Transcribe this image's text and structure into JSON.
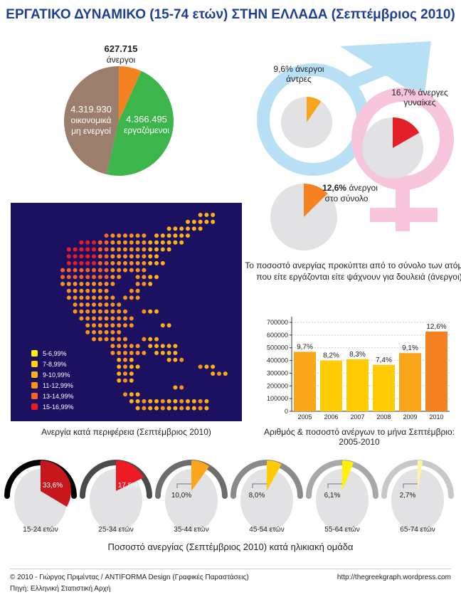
{
  "title": "ΕΡΓΑΤΙΚΟ ΔΥΝΑΜΙΚΟ (15-74 ετών) ΣΤΗΝ ΕΛΛΑΔΑ (Σεπτέμβριος 2010)",
  "colors": {
    "orange": "#f58220",
    "green": "#3cb54a",
    "brown": "#9b7e6b",
    "gray": "#e2e2e4",
    "red": "#e3202a",
    "blue_ring": "#b8e0f5",
    "pink_ring": "#f7c6dc",
    "map_bg": "#1c1060",
    "title": "#1f3f94"
  },
  "workforce_pie": {
    "slices": [
      {
        "value": 627715,
        "label_value": "627.715",
        "label": "άνεργοι",
        "color": "#f58220"
      },
      {
        "value": 4366495,
        "label_value": "4.366.495",
        "label": "εργαζόμενοι",
        "color": "#3cb54a"
      },
      {
        "value": 4319930,
        "label_value": "4.319.930",
        "label": "οικονομικά μη ενεργοί",
        "label_lines": [
          "οικονομικά",
          "μη ενεργοί"
        ],
        "color": "#9b7e6b"
      }
    ]
  },
  "gender": {
    "men": {
      "percent": 9.6,
      "label_lines": [
        "9,6% άνεργοι",
        "άντρες"
      ],
      "color": "#f7a51c"
    },
    "women": {
      "percent": 16.7,
      "label_lines": [
        "16,7% άνεργες",
        "γυναίκες"
      ],
      "color": "#e3202a"
    },
    "total": {
      "percent": 12.6,
      "label_bold": "12,6%",
      "label_rest": " άνεργοι",
      "label_line2": "στο σύνολο",
      "color": "#f58220"
    },
    "note_lines": [
      "Το ποσοστό ανεργίας προκύπτει από το σύνολο των ατόμων",
      "που είτε εργάζονται είτε ψάχνουν για δουλειά (άνεργοι)"
    ]
  },
  "map": {
    "caption": "Ανεργία κατά περιφέρεια (Σεπτέμβριος 2010)",
    "legend": [
      {
        "label": "5-6,99%",
        "color": "#fff200"
      },
      {
        "label": "7-8,99%",
        "color": "#ffd200"
      },
      {
        "label": "9-10,99%",
        "color": "#fbb117"
      },
      {
        "label": "11-12,99%",
        "color": "#f7941d"
      },
      {
        "label": "13-14,99%",
        "color": "#f26522"
      },
      {
        "label": "15-16,99%",
        "color": "#ed1c24"
      }
    ]
  },
  "chart_data": [
    {
      "type": "bar",
      "title": "Αριθμός & ποσοστό ανέργων το μήνα Σεπτέμβριο: 2005-2010",
      "categories": [
        "2005",
        "2006",
        "2007",
        "2008",
        "2009",
        "2010"
      ],
      "values": [
        468000,
        400000,
        410000,
        365000,
        458000,
        627715
      ],
      "data_labels": [
        "9,7%",
        "8,2%",
        "8,3%",
        "7,4%",
        "9,1%",
        "12,6%"
      ],
      "colors": [
        "#f9a61a",
        "#ffcb05",
        "#ffcb05",
        "#ffcb05",
        "#f9a61a",
        "#f58220"
      ],
      "ylim": [
        0,
        700000
      ],
      "yticks": [
        "0",
        "100000",
        "200000",
        "300000",
        "400000",
        "500000",
        "600000",
        "700000"
      ],
      "grid": true
    },
    {
      "type": "pie",
      "title": "Ποσοστό ανεργίας (Σεπτέμβριος 2010) κατά ηλικιακή ομάδα",
      "groups": [
        {
          "label": "15-24 ετών",
          "percent": 33.6,
          "text": "33,6%",
          "color": "#c8161d",
          "arc": "#000000",
          "mood": -1
        },
        {
          "label": "25-34 ετών",
          "percent": 17.8,
          "text": "17,8%",
          "color": "#ed1c24",
          "arc": "#4a4a4a",
          "mood": -0.8
        },
        {
          "label": "35-44 ετών",
          "percent": 10.0,
          "text": "10,0%",
          "color": "#f9a61a",
          "arc": "#6d6d6d",
          "mood": -0.4
        },
        {
          "label": "45-54 ετών",
          "percent": 8.0,
          "text": "8,0%",
          "color": "#ffcb05",
          "arc": "#8a8a8a",
          "mood": -0.3
        },
        {
          "label": "55-64 ετών",
          "percent": 6.1,
          "text": "6,1%",
          "color": "#fff200",
          "arc": "#a8a8a8",
          "mood": 0
        },
        {
          "label": "65-74 ετών",
          "percent": 2.7,
          "text": "2,7%",
          "color": "#fff59a",
          "arc": "#c8c8c8",
          "mood": 0.4
        }
      ]
    }
  ],
  "footer": {
    "credit": "© 2010 - Γιώργος Πριμέντας / ANTIFORMA Design (Γραφικές Παραστάσεις)",
    "source": "Πηγή: Ελληνική Στατιστική Αρχή",
    "url": "http://thegreekgraph.wordpress.com"
  }
}
